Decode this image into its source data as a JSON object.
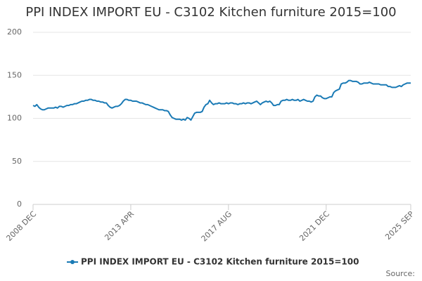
{
  "chart_data": {
    "type": "line",
    "title": "PPI INDEX IMPORT EU - C3102 Kitchen furniture 2015=100",
    "source": "Source:",
    "categories": [
      "2008 DEC",
      null,
      null,
      null,
      null,
      null,
      null,
      null,
      null,
      null,
      null,
      null,
      null,
      null,
      null,
      null,
      null,
      null,
      null,
      null,
      null,
      null,
      null,
      null,
      null,
      null,
      null,
      null,
      null,
      null,
      null,
      null,
      null,
      null,
      null,
      null,
      null,
      null,
      null,
      null,
      null,
      null,
      null,
      null,
      null,
      null,
      null,
      null,
      null,
      null,
      null,
      null,
      "2013 APR",
      null,
      null,
      null,
      null,
      null,
      null,
      null,
      null,
      null,
      null,
      null,
      null,
      null,
      null,
      null,
      null,
      null,
      null,
      null,
      null,
      null,
      null,
      null,
      null,
      null,
      null,
      null,
      null,
      null,
      null,
      null,
      null,
      null,
      null,
      null,
      null,
      null,
      null,
      null,
      null,
      null,
      null,
      null,
      null,
      null,
      null,
      null,
      null,
      null,
      null,
      null,
      "2017 AUG",
      null,
      null,
      null,
      null,
      null,
      null,
      null,
      null,
      null,
      null,
      null,
      null,
      null,
      null,
      null,
      null,
      null,
      null,
      null,
      null,
      null,
      null,
      null,
      null,
      null,
      null,
      null,
      null,
      null,
      null,
      null,
      null,
      null,
      null,
      null,
      null,
      null,
      null,
      null,
      null,
      null,
      null,
      null,
      null,
      null,
      null,
      null,
      null,
      null,
      null,
      null,
      "2021 DEC",
      null,
      null,
      null,
      null,
      null,
      null,
      null,
      null,
      null,
      null,
      null,
      null,
      null,
      null,
      null,
      null,
      null,
      null,
      null,
      null,
      null,
      null,
      null,
      null,
      null,
      null,
      null,
      null,
      null,
      null,
      null,
      null,
      null,
      null,
      null,
      null,
      null,
      null,
      null,
      null,
      null,
      null,
      null,
      null,
      "2025 SEP"
    ],
    "series": [
      {
        "name": "PPI INDEX IMPORT EU - C3102 Kitchen furniture 2015=100",
        "color": "#1a7ab5",
        "values": [
          115,
          114,
          116,
          113,
          111,
          110,
          110,
          111,
          112,
          112,
          112,
          112,
          113,
          112,
          114,
          114,
          113,
          114,
          115,
          115,
          116,
          116,
          117,
          117,
          118,
          119,
          120,
          120,
          121,
          121,
          122,
          122,
          121,
          121,
          120,
          120,
          119,
          119,
          118,
          118,
          115,
          113,
          112,
          113,
          114,
          114,
          115,
          117,
          120,
          122,
          122,
          121,
          121,
          120,
          120,
          120,
          119,
          118,
          118,
          117,
          116,
          116,
          115,
          114,
          113,
          112,
          111,
          110,
          110,
          110,
          109,
          109,
          108,
          104,
          101,
          100,
          99,
          99,
          99,
          98,
          99,
          98,
          101,
          100,
          98,
          102,
          106,
          107,
          107,
          107,
          108,
          113,
          116,
          117,
          121,
          118,
          116,
          117,
          117,
          118,
          117,
          117,
          117,
          118,
          117,
          118,
          118,
          117,
          117,
          116,
          117,
          117,
          118,
          117,
          118,
          118,
          117,
          118,
          119,
          120,
          118,
          116,
          118,
          119,
          120,
          119,
          120,
          118,
          115,
          115,
          116,
          116,
          120,
          121,
          121,
          122,
          121,
          121,
          122,
          121,
          121,
          122,
          120,
          121,
          122,
          121,
          120,
          120,
          119,
          120,
          125,
          127,
          126,
          126,
          124,
          123,
          123,
          124,
          125,
          125,
          130,
          132,
          133,
          134,
          140,
          141,
          141,
          142,
          144,
          144,
          143,
          143,
          143,
          142,
          140,
          140,
          141,
          141,
          141,
          142,
          141,
          140,
          140,
          140,
          140,
          139,
          139,
          139,
          139,
          137,
          137,
          136,
          136,
          136,
          137,
          138,
          137,
          139,
          140,
          141,
          141,
          141
        ]
      }
    ],
    "ylim": [
      0,
      200
    ],
    "yticks": [
      0,
      50,
      100,
      150,
      200
    ],
    "grid": true,
    "legend": "bottom"
  }
}
